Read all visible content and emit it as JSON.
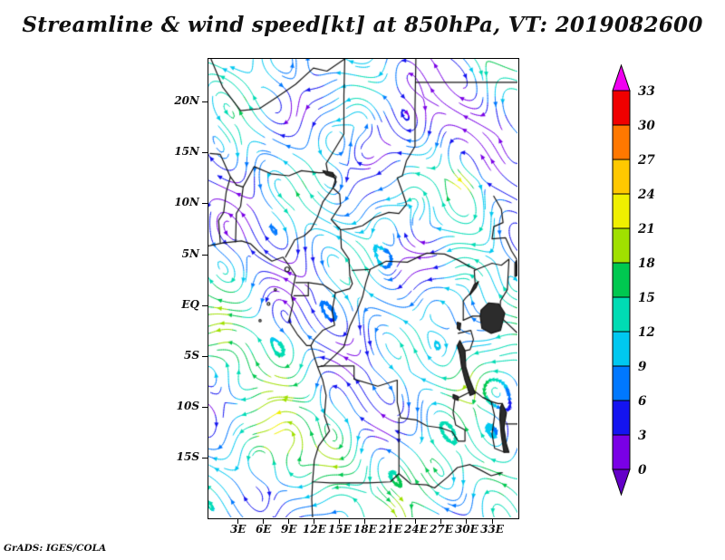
{
  "title": "Streamline & wind speed[kt] at 850hPa, VT: 2019082600",
  "credit": "GrADS: IGES/COLA",
  "chart_data": {
    "type": "streamline",
    "variable": "wind speed [kt]",
    "level": "850hPa",
    "valid_time": "2019082600",
    "lon_range": [
      -0.5,
      36.0
    ],
    "lat_range": [
      -20.8,
      24.3
    ],
    "x_ticks": [
      {
        "label": "3E",
        "lon": 3
      },
      {
        "label": "6E",
        "lon": 6
      },
      {
        "label": "9E",
        "lon": 9
      },
      {
        "label": "12E",
        "lon": 12
      },
      {
        "label": "15E",
        "lon": 15
      },
      {
        "label": "18E",
        "lon": 18
      },
      {
        "label": "21E",
        "lon": 21
      },
      {
        "label": "24E",
        "lon": 24
      },
      {
        "label": "27E",
        "lon": 27
      },
      {
        "label": "30E",
        "lon": 30
      },
      {
        "label": "33E",
        "lon": 33
      }
    ],
    "y_ticks": [
      {
        "label": "20N",
        "lat": 20
      },
      {
        "label": "15N",
        "lat": 15
      },
      {
        "label": "10N",
        "lat": 10
      },
      {
        "label": "5N",
        "lat": 5
      },
      {
        "label": "EQ",
        "lat": 0
      },
      {
        "label": "5S",
        "lat": -5
      },
      {
        "label": "10S",
        "lat": -10
      },
      {
        "label": "15S",
        "lat": -15
      }
    ],
    "colorbar": {
      "levels": [
        0,
        3,
        6,
        9,
        12,
        15,
        18,
        21,
        24,
        27,
        30,
        33
      ],
      "segment_colors": [
        "#7a00e6",
        "#1414f0",
        "#0078ff",
        "#00c8f0",
        "#00dcb4",
        "#00c850",
        "#a0e000",
        "#f0f000",
        "#ffc800",
        "#ff7800",
        "#f00000"
      ],
      "under_color": "#6400c8",
      "over_color": "#f000f0"
    },
    "flow": {
      "seed": 11,
      "psi_terms": [
        [
          2.2,
          0.55,
          0.45,
          0.7
        ],
        [
          1.8,
          0.35,
          -0.5,
          2.1
        ],
        [
          1.5,
          0.75,
          0.6,
          4.2
        ],
        [
          1.2,
          0.25,
          0.35,
          5.6
        ]
      ],
      "speed_base": 9,
      "speed_waves": [
        [
          4,
          0.35,
          0.3,
          1.2
        ],
        [
          3,
          0.18,
          0.22,
          2.0
        ],
        [
          2.5,
          0.5,
          -0.4,
          1.0
        ]
      ],
      "speed_bumps": [
        [
          13,
          7,
          -14,
          16
        ],
        [
          12,
          30,
          -7,
          14
        ],
        [
          9,
          24,
          -16.5,
          18
        ],
        [
          8,
          33,
          -16,
          10
        ],
        [
          16,
          29.5,
          12,
          4
        ],
        [
          -7,
          21,
          16,
          18
        ],
        [
          -6,
          28,
          20,
          12
        ],
        [
          -6,
          8,
          18,
          14
        ],
        [
          -7,
          24.5,
          4.5,
          8
        ],
        [
          -6,
          19,
          -12,
          7
        ],
        [
          5,
          1,
          -5,
          10
        ],
        [
          -5,
          33,
          6,
          8
        ]
      ]
    },
    "map": {
      "coast": [
        [
          -0.5,
          5.9
        ],
        [
          1.2,
          6.2
        ],
        [
          3.4,
          6.4
        ],
        [
          4.5,
          6.1
        ],
        [
          5.5,
          5.3
        ],
        [
          7.0,
          4.4
        ],
        [
          8.3,
          4.8
        ],
        [
          9.0,
          4.0
        ],
        [
          9.8,
          3.0
        ],
        [
          9.3,
          1.0
        ],
        [
          9.5,
          0.3
        ],
        [
          9.0,
          -1.5
        ],
        [
          10.0,
          -2.8
        ],
        [
          11.1,
          -3.9
        ],
        [
          11.6,
          -3.9
        ],
        [
          12.0,
          -5.0
        ],
        [
          12.4,
          -6.0
        ],
        [
          13.0,
          -7.3
        ],
        [
          13.4,
          -8.8
        ],
        [
          13.2,
          -10.8
        ],
        [
          13.8,
          -12.3
        ],
        [
          12.5,
          -13.8
        ],
        [
          12.0,
          -15.2
        ],
        [
          11.8,
          -17.3
        ],
        [
          11.7,
          -19.0
        ],
        [
          11.8,
          -20.8
        ]
      ],
      "borders": [
        [
          [
            2.8,
            11.9
          ],
          [
            3.6,
            11.7
          ],
          [
            4.9,
            13.7
          ],
          [
            6.9,
            13.0
          ],
          [
            9.0,
            12.8
          ],
          [
            10.5,
            13.3
          ],
          [
            12.5,
            13.1
          ],
          [
            13.6,
            13.1
          ]
        ],
        [
          [
            2.7,
            6.3
          ],
          [
            2.8,
            9.1
          ],
          [
            3.3,
            9.8
          ],
          [
            3.6,
            11.7
          ]
        ],
        [
          [
            0.9,
            6.2
          ],
          [
            0.7,
            8.4
          ],
          [
            1.3,
            9.2
          ],
          [
            1.6,
            11.2
          ],
          [
            2.1,
            12.7
          ],
          [
            2.8,
            11.9
          ]
        ],
        [
          [
            8.6,
            4.8
          ],
          [
            9.7,
            6.5
          ],
          [
            10.8,
            6.9
          ],
          [
            11.6,
            7.5
          ],
          [
            12.4,
            8.8
          ],
          [
            13.0,
            10.2
          ],
          [
            14.2,
            11.6
          ],
          [
            14.6,
            12.2
          ],
          [
            14.1,
            13.1
          ],
          [
            13.6,
            13.1
          ]
        ],
        [
          [
            15.6,
            24.3
          ],
          [
            15.5,
            20.7
          ],
          [
            15.5,
            16.9
          ],
          [
            13.4,
            14.0
          ],
          [
            13.6,
            13.1
          ]
        ],
        [
          [
            -0.2,
            24.3
          ],
          [
            1.2,
            21.5
          ],
          [
            3.3,
            19.2
          ],
          [
            5.5,
            19.4
          ],
          [
            7.5,
            20.5
          ],
          [
            9.8,
            21.8
          ],
          [
            11.9,
            23.4
          ],
          [
            13.5,
            23.1
          ],
          [
            15.6,
            24.3
          ]
        ],
        [
          [
            24.0,
            24.3
          ],
          [
            23.9,
            19.5
          ],
          [
            23.9,
            15.7
          ],
          [
            22.9,
            14.3
          ],
          [
            22.4,
            12.8
          ],
          [
            21.8,
            12.6
          ],
          [
            22.5,
            11.0
          ],
          [
            22.9,
            10.0
          ]
        ],
        [
          [
            24.0,
            22.0
          ],
          [
            36.0,
            22.0
          ]
        ],
        [
          [
            14.1,
            13.1
          ],
          [
            14.6,
            12.7
          ],
          [
            14.2,
            11.6
          ],
          [
            15.0,
            11.0
          ],
          [
            15.1,
            9.9
          ],
          [
            14.0,
            8.5
          ],
          [
            15.1,
            7.5
          ],
          [
            16.4,
            7.6
          ],
          [
            17.7,
            7.9
          ],
          [
            19.1,
            8.7
          ],
          [
            20.8,
            9.2
          ],
          [
            22.0,
            9.1
          ],
          [
            22.9,
            10.0
          ]
        ],
        [
          [
            15.1,
            7.5
          ],
          [
            15.2,
            5.7
          ],
          [
            16.1,
            4.6
          ],
          [
            16.2,
            3.0
          ],
          [
            16.5,
            2.2
          ],
          [
            16.2,
            1.7
          ],
          [
            14.5,
            1.3
          ],
          [
            13.0,
            2.1
          ],
          [
            11.3,
            2.3
          ],
          [
            9.8,
            2.3
          ]
        ],
        [
          [
            16.5,
            3.5
          ],
          [
            18.6,
            3.6
          ],
          [
            20.5,
            4.4
          ],
          [
            23.0,
            4.3
          ],
          [
            25.3,
            5.2
          ],
          [
            27.4,
            5.1
          ],
          [
            29.0,
            4.5
          ],
          [
            30.5,
            3.8
          ],
          [
            31.0,
            3.6
          ]
        ],
        [
          [
            12.4,
            -6.0
          ],
          [
            13.1,
            -5.9
          ],
          [
            14.4,
            -4.9
          ],
          [
            15.5,
            -4.0
          ],
          [
            16.2,
            -2.0
          ],
          [
            17.0,
            -0.6
          ],
          [
            17.7,
            0.9
          ],
          [
            18.1,
            2.3
          ],
          [
            18.6,
            3.6
          ]
        ],
        [
          [
            11.6,
            -3.9
          ],
          [
            12.0,
            -3.3
          ],
          [
            13.0,
            -2.4
          ],
          [
            14.4,
            -1.9
          ],
          [
            14.1,
            -0.5
          ],
          [
            14.5,
            1.3
          ]
        ],
        [
          [
            12.8,
            -5.9
          ],
          [
            16.7,
            -5.9
          ],
          [
            16.7,
            -7.2
          ],
          [
            19.5,
            -7.9
          ],
          [
            21.8,
            -7.3
          ],
          [
            21.8,
            -9.5
          ],
          [
            22.2,
            -11.0
          ],
          [
            24.0,
            -11.2
          ],
          [
            25.3,
            -11.8
          ],
          [
            27.0,
            -12.0
          ],
          [
            28.3,
            -12.4
          ],
          [
            29.0,
            -13.3
          ],
          [
            29.8,
            -13.3
          ],
          [
            29.8,
            -12.2
          ],
          [
            28.7,
            -11.7
          ],
          [
            28.4,
            -10.5
          ],
          [
            28.6,
            -9.2
          ],
          [
            30.8,
            -8.3
          ]
        ],
        [
          [
            22.0,
            -11.0
          ],
          [
            22.0,
            -13.0
          ],
          [
            22.0,
            -16.5
          ],
          [
            21.0,
            -17.3
          ],
          [
            18.4,
            -17.4
          ],
          [
            13.9,
            -17.4
          ],
          [
            11.8,
            -17.3
          ]
        ],
        [
          [
            22.0,
            -16.5
          ],
          [
            23.4,
            -17.5
          ],
          [
            25.3,
            -17.6
          ],
          [
            26.2,
            -17.9
          ],
          [
            27.8,
            -16.8
          ],
          [
            28.9,
            -15.9
          ],
          [
            30.4,
            -15.6
          ],
          [
            31.3,
            -16.0
          ],
          [
            32.9,
            -16.7
          ],
          [
            34.2,
            -16.4
          ]
        ],
        [
          [
            29.6,
            -1.4
          ],
          [
            30.7,
            -1.0
          ],
          [
            31.7,
            -1.0
          ],
          [
            33.9,
            -1.0
          ],
          [
            35.9,
            -2.6
          ]
        ],
        [
          [
            29.0,
            -2.7
          ],
          [
            30.5,
            -2.4
          ],
          [
            30.8,
            -3.3
          ],
          [
            30.4,
            -4.3
          ],
          [
            29.3,
            -4.5
          ]
        ],
        [
          [
            29.6,
            -1.4
          ],
          [
            29.6,
            0.5
          ],
          [
            29.9,
            0.8
          ],
          [
            30.4,
            1.2
          ],
          [
            31.0,
            2.2
          ],
          [
            30.9,
            3.5
          ],
          [
            31.8,
            3.8
          ],
          [
            33.0,
            4.2
          ],
          [
            34.1,
            4.0
          ],
          [
            35.0,
            4.6
          ],
          [
            34.8,
            1.6
          ],
          [
            34.0,
            0.5
          ],
          [
            33.9,
            -1.0
          ]
        ],
        [
          [
            33.2,
            10.8
          ],
          [
            34.1,
            9.5
          ],
          [
            34.3,
            8.2
          ],
          [
            33.2,
            7.8
          ],
          [
            33.0,
            6.6
          ],
          [
            34.6,
            6.7
          ],
          [
            35.3,
            5.4
          ],
          [
            35.9,
            4.6
          ]
        ],
        [
          [
            30.8,
            -8.3
          ],
          [
            31.9,
            -9.0
          ],
          [
            32.9,
            -9.4
          ],
          [
            33.7,
            -9.6
          ],
          [
            34.2,
            -9.6
          ]
        ],
        [
          [
            34.6,
            -11.6
          ],
          [
            36.0,
            -11.6
          ]
        ],
        [
          [
            9.6,
            1.0
          ],
          [
            11.3,
            1.0
          ],
          [
            11.3,
            2.3
          ]
        ],
        [
          [
            32.9,
            -9.4
          ],
          [
            33.3,
            -10.8
          ],
          [
            33.0,
            -12.6
          ],
          [
            33.3,
            -14.0
          ],
          [
            34.5,
            -14.4
          ]
        ],
        [
          [
            -0.3,
            15.0
          ],
          [
            0.9,
            14.9
          ],
          [
            2.1,
            12.7
          ]
        ]
      ],
      "lakes": [
        [
          [
            31.7,
            -0.4
          ],
          [
            32.6,
            0.3
          ],
          [
            33.8,
            0.2
          ],
          [
            34.5,
            -0.7
          ],
          [
            34.0,
            -2.4
          ],
          [
            32.9,
            -2.7
          ],
          [
            31.8,
            -2.2
          ],
          [
            31.6,
            -1.0
          ]
        ],
        [
          [
            29.2,
            -3.4
          ],
          [
            29.8,
            -4.4
          ],
          [
            29.9,
            -6.0
          ],
          [
            30.3,
            -7.1
          ],
          [
            31.0,
            -8.6
          ],
          [
            30.4,
            -8.8
          ],
          [
            29.8,
            -7.3
          ],
          [
            29.4,
            -6.0
          ],
          [
            29.2,
            -4.8
          ],
          [
            28.9,
            -3.9
          ]
        ],
        [
          [
            34.2,
            -9.6
          ],
          [
            34.7,
            -10.5
          ],
          [
            34.4,
            -12.0
          ],
          [
            34.7,
            -13.6
          ],
          [
            35.0,
            -14.4
          ],
          [
            34.4,
            -14.4
          ],
          [
            34.1,
            -12.8
          ],
          [
            33.9,
            -11.0
          ],
          [
            34.0,
            -9.9
          ]
        ],
        [
          [
            28.4,
            -8.7
          ],
          [
            29.0,
            -8.9
          ],
          [
            29.0,
            -9.3
          ],
          [
            28.4,
            -9.1
          ]
        ],
        [
          [
            30.4,
            1.1
          ],
          [
            31.1,
            1.8
          ],
          [
            31.4,
            2.4
          ],
          [
            30.9,
            2.1
          ],
          [
            30.5,
            1.4
          ]
        ],
        [
          [
            28.9,
            -1.6
          ],
          [
            29.3,
            -1.7
          ],
          [
            29.2,
            -2.4
          ],
          [
            28.9,
            -2.2
          ]
        ],
        [
          [
            13.0,
            13.3
          ],
          [
            14.2,
            13.1
          ],
          [
            14.4,
            12.6
          ],
          [
            13.4,
            12.9
          ]
        ],
        [
          [
            35.9,
            4.5
          ],
          [
            36.0,
            3.0
          ],
          [
            35.7,
            2.9
          ],
          [
            35.7,
            4.2
          ]
        ]
      ],
      "islets": [
        [
          6.6,
          0.2,
          1.5
        ],
        [
          7.4,
          1.6,
          1.2
        ],
        [
          5.6,
          -1.45,
          1.2
        ],
        [
          8.8,
          3.6,
          2.5
        ]
      ]
    }
  }
}
